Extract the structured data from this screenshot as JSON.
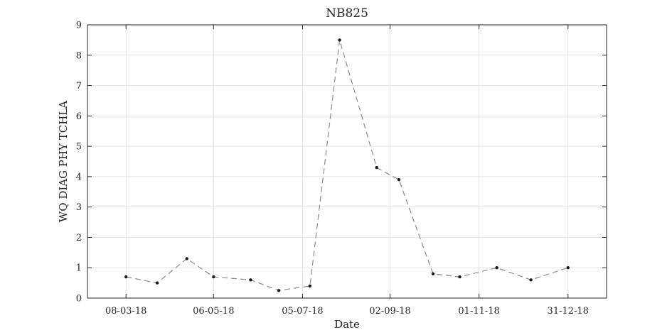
{
  "chart_data": {
    "type": "line",
    "title": "NB825",
    "xlabel": "Date",
    "ylabel": "WQ DIAG PHY TCHLA",
    "x_tick_labels": [
      "08-03-18",
      "06-05-18",
      "05-07-18",
      "02-09-18",
      "01-11-18",
      "31-12-18"
    ],
    "x_tick_dates": [
      "2018-03-08",
      "2018-05-06",
      "2018-07-05",
      "2018-09-02",
      "2018-11-01",
      "2018-12-31"
    ],
    "xlim": [
      "2018-02-10",
      "2019-01-26"
    ],
    "ylim": [
      0,
      9
    ],
    "y_ticks": [
      0,
      1,
      2,
      3,
      4,
      5,
      6,
      7,
      8,
      9
    ],
    "grid": true,
    "line_style": "dashed",
    "line_color": "#8c8c8c",
    "marker_color": "#1a1a1a",
    "series": [
      {
        "x": [
          "2018-03-08",
          "2018-03-29",
          "2018-04-18",
          "2018-05-06",
          "2018-05-31",
          "2018-06-19",
          "2018-07-10",
          "2018-07-30",
          "2018-08-24",
          "2018-09-08",
          "2018-10-01",
          "2018-10-19",
          "2018-11-13",
          "2018-12-06",
          "2018-12-31"
        ],
        "y": [
          0.7,
          0.5,
          1.3,
          0.7,
          0.6,
          0.25,
          0.4,
          8.5,
          4.3,
          3.9,
          0.8,
          0.7,
          1.0,
          0.6,
          1.0
        ]
      }
    ]
  }
}
